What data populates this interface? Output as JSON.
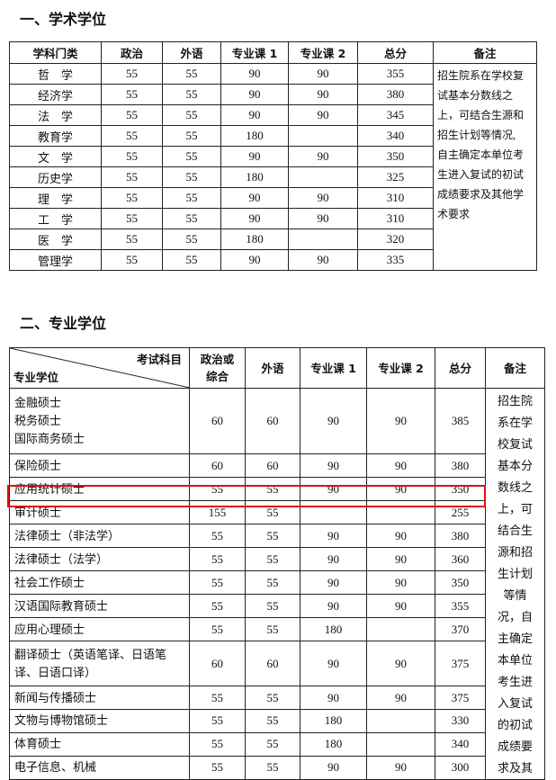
{
  "section1": {
    "title": "一、学术学位",
    "headers": [
      "学科门类",
      "政治",
      "外语",
      "专业课 1",
      "专业课 2",
      "总分",
      "备注"
    ],
    "rows": [
      [
        "哲　学",
        "55",
        "55",
        "90",
        "90",
        "355"
      ],
      [
        "经济学",
        "55",
        "55",
        "90",
        "90",
        "380"
      ],
      [
        "法　学",
        "55",
        "55",
        "90",
        "90",
        "345"
      ],
      [
        "教育学",
        "55",
        "55",
        "180",
        "",
        "340"
      ],
      [
        "文　学",
        "55",
        "55",
        "90",
        "90",
        "350"
      ],
      [
        "历史学",
        "55",
        "55",
        "180",
        "",
        "325"
      ],
      [
        "理　学",
        "55",
        "55",
        "90",
        "90",
        "310"
      ],
      [
        "工　学",
        "55",
        "55",
        "90",
        "90",
        "310"
      ],
      [
        "医　学",
        "55",
        "55",
        "180",
        "",
        "320"
      ],
      [
        "管理学",
        "55",
        "55",
        "90",
        "90",
        "335"
      ]
    ],
    "remark_lines": [
      "招生院系在学校复",
      "试基本分数线之",
      "上，可结合生源和",
      "招生计划等情况,",
      "自主确定本单位考",
      "生进入复试的初试",
      "成绩要求及其他学",
      "术要求"
    ]
  },
  "section2": {
    "title": "二、专业学位",
    "header_diag_top": "考试科目",
    "header_diag_bottom": "专业学位",
    "headers": [
      "政治或\n综合",
      "外语",
      "专业课 1",
      "专业课 2",
      "总分",
      "备注"
    ],
    "rows": [
      {
        "names": [
          "金融硕士",
          "税务硕士",
          "国际商务硕士"
        ],
        "vals": [
          "60",
          "60",
          "90",
          "90",
          "385"
        ]
      },
      {
        "names": [
          "保险硕士"
        ],
        "vals": [
          "60",
          "60",
          "90",
          "90",
          "380"
        ]
      },
      {
        "names": [
          "应用统计硕士"
        ],
        "vals": [
          "55",
          "55",
          "90",
          "90",
          "350"
        ]
      },
      {
        "names": [
          "审计硕士"
        ],
        "vals": [
          "155",
          "55",
          "",
          "",
          "255"
        ],
        "highlighted": true
      },
      {
        "names": [
          "法律硕士（非法学）"
        ],
        "vals": [
          "55",
          "55",
          "90",
          "90",
          "380"
        ]
      },
      {
        "names": [
          "法律硕士（法学）"
        ],
        "vals": [
          "55",
          "55",
          "90",
          "90",
          "360"
        ]
      },
      {
        "names": [
          "社会工作硕士"
        ],
        "vals": [
          "55",
          "55",
          "90",
          "90",
          "350"
        ]
      },
      {
        "names": [
          "汉语国际教育硕士"
        ],
        "vals": [
          "55",
          "55",
          "90",
          "90",
          "355"
        ]
      },
      {
        "names": [
          "应用心理硕士"
        ],
        "vals": [
          "55",
          "55",
          "180",
          "",
          "370"
        ]
      },
      {
        "names": [
          "翻译硕士（英语笔译、日语笔",
          "译、日语口译）"
        ],
        "vals": [
          "60",
          "60",
          "90",
          "90",
          "375"
        ]
      },
      {
        "names": [
          "新闻与传播硕士"
        ],
        "vals": [
          "55",
          "55",
          "90",
          "90",
          "375"
        ]
      },
      {
        "names": [
          "文物与博物馆硕士"
        ],
        "vals": [
          "55",
          "55",
          "180",
          "",
          "330"
        ]
      },
      {
        "names": [
          "体育硕士"
        ],
        "vals": [
          "55",
          "55",
          "180",
          "",
          "340"
        ]
      },
      {
        "names": [
          "电子信息、机械"
        ],
        "vals": [
          "55",
          "55",
          "90",
          "90",
          "300"
        ]
      }
    ],
    "remark_lines": [
      "招生院",
      "系在学",
      "校复试",
      "基本分",
      "数线之",
      "上，可",
      "结合生",
      "源和招",
      "生计划",
      "等情",
      "况，自",
      "主确定",
      "本单位",
      "考生进",
      "入复试",
      "的初试",
      "成绩要",
      "求及其"
    ]
  },
  "highlight_color": "#e01010"
}
